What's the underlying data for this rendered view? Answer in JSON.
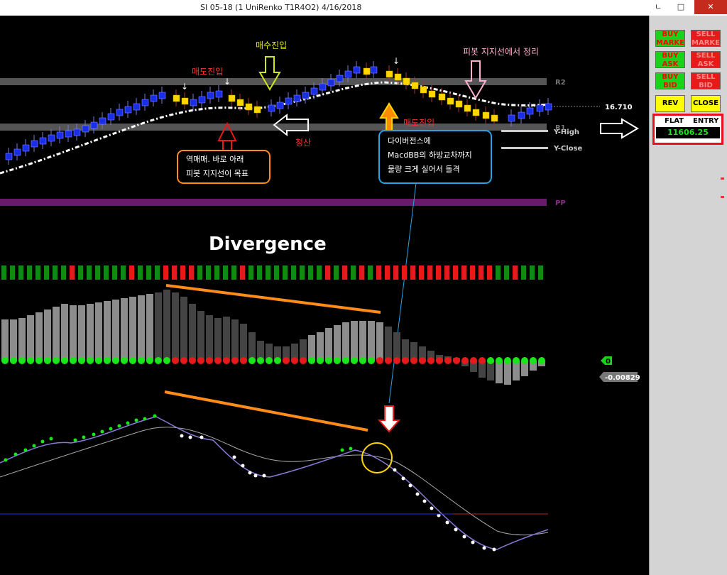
{
  "window": {
    "title": "SI 05-18 (1 UniRenko T1R4O2)  4/16/2018",
    "minimize_label": "ㄴ",
    "maximize_label": "□",
    "close_label": "✕"
  },
  "chart": {
    "levels": {
      "r2": "R2",
      "r1": "R1",
      "pp": "PP",
      "y_high": "Y-High",
      "y_close": "Y-Close",
      "price": "16.710"
    },
    "annotations": {
      "buy_entry": "매수진입",
      "sell_entry_1": "매도진입",
      "sell_entry_2": "매도진입",
      "liquidation": "청산",
      "pivot_exit": "피봇 지지선에서 정리",
      "reverse_note_line1": "역매매. 바로 아래",
      "reverse_note_line2": "피봇 지지선이 목표",
      "divergence_note_line1": "다이버전스에",
      "divergence_note_line2": "MacdBB의 하방교차까지",
      "divergence_note_line3": "물량 크게 실어서 돌격",
      "divergence_title": "Divergence"
    },
    "histogram": {
      "zero_label": "0",
      "value_label": "-0.00829"
    }
  },
  "panel": {
    "buy_market": "BUY MARKET",
    "sell_market": "SELL MARKET",
    "buy_ask": "BUY ASK",
    "sell_ask": "SELL ASK",
    "buy_bid": "BUY BID",
    "sell_bid": "SELL BID",
    "rev": "REV",
    "close": "CLOSE",
    "position": "FLAT",
    "entry_header": "ENTRY",
    "entry_price": "11606.25"
  },
  "colors": {
    "up_bar": "#1a2ee6",
    "down_bar": "#ffd700",
    "pivot_band": "#555555",
    "pp_band": "#6a1a6a",
    "annotation_orange": "#ff8c1a",
    "callout_border": "#29a3e6"
  }
}
